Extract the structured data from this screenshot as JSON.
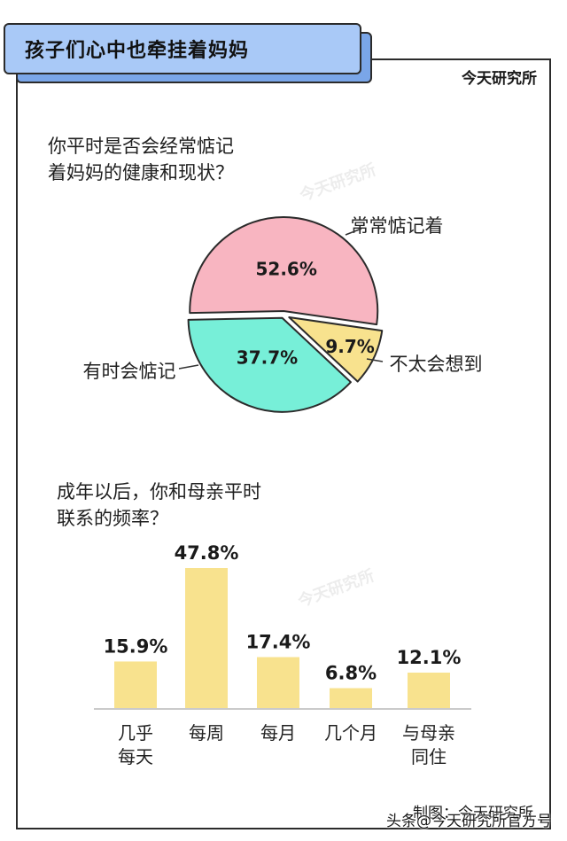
{
  "header": {
    "title": "孩子们心中也牵挂着妈妈",
    "brand": "今天研究所"
  },
  "watermark": "今天研究所",
  "footer": {
    "credit": "制图：今天研究所",
    "source": "头条@今天研究所官方号"
  },
  "colors": {
    "pink": "#f8b5c1",
    "mint": "#77efd8",
    "yellow": "#f8e28e",
    "bar": "#f8e28e",
    "title_fill": "#a9c9f7",
    "title_shadow": "#7aa6e8"
  },
  "chart_data": [
    {
      "type": "pie",
      "title": "你平时是否会经常惦记着妈妈的健康和现状？",
      "title_lines": [
        "你平时是否会经常惦记",
        "着妈妈的健康和现状？"
      ],
      "slices": [
        {
          "label": "常常惦记着",
          "value": 52.6,
          "value_label": "52.6%",
          "color": "#f8b5c1"
        },
        {
          "label": "不太会想到",
          "value": 9.7,
          "value_label": "9.7%",
          "color": "#f8e28e"
        },
        {
          "label": "有时会惦记",
          "value": 37.7,
          "value_label": "37.7%",
          "color": "#77efd8"
        }
      ]
    },
    {
      "type": "bar",
      "title": "成年以后，你和母亲平时联系的频率？",
      "title_lines": [
        "成年以后，你和母亲平时",
        "联系的频率？"
      ],
      "categories": [
        [
          "几乎",
          "每天"
        ],
        [
          "每周"
        ],
        [
          "每月"
        ],
        [
          "几个月"
        ],
        [
          "与母亲",
          "同住"
        ]
      ],
      "values": [
        15.9,
        47.8,
        17.4,
        6.8,
        12.1
      ],
      "value_labels": [
        "15.9%",
        "47.8%",
        "17.4%",
        "6.8%",
        "12.1%"
      ],
      "ylim": [
        0,
        50
      ]
    }
  ]
}
